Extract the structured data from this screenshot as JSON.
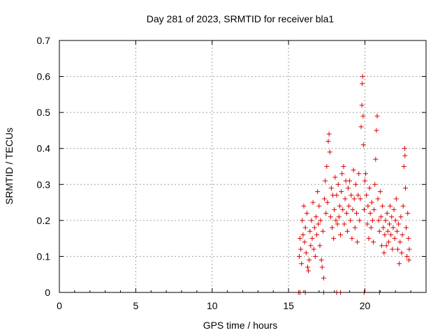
{
  "chart_data": {
    "type": "scatter",
    "title": "Day 281 of 2023, SRMTID for receiver bla1",
    "xlabel": "GPS time / hours",
    "ylabel": "SRMTID / TECUs",
    "xlim": [
      0,
      24
    ],
    "ylim": [
      0,
      0.7
    ],
    "x_ticks": [
      0,
      5,
      10,
      15,
      20
    ],
    "y_ticks": [
      0,
      0.1,
      0.2,
      0.3,
      0.4,
      0.5,
      0.6,
      0.7
    ],
    "x_tick_labels": [
      "0",
      "5",
      "10",
      "15",
      "20"
    ],
    "y_tick_labels": [
      "0",
      "0.1",
      "0.2",
      "0.3",
      "0.4",
      "0.5",
      "0.6",
      "0.7"
    ],
    "grid": true,
    "marker": "+",
    "color": "#dd0000",
    "series": [
      {
        "name": "SRMTID",
        "points": [
          [
            15.65,
            0
          ],
          [
            15.75,
            0
          ],
          [
            16.1,
            0
          ],
          [
            17.3,
            0
          ],
          [
            18.15,
            0
          ],
          [
            18.4,
            0
          ],
          [
            19.95,
            0
          ],
          [
            20.95,
            0
          ],
          [
            15.7,
            0.1
          ],
          [
            15.75,
            0.15
          ],
          [
            15.8,
            0.12
          ],
          [
            15.85,
            0.08
          ],
          [
            15.9,
            0.2
          ],
          [
            15.95,
            0.16
          ],
          [
            16.0,
            0.24
          ],
          [
            16.05,
            0.14
          ],
          [
            16.1,
            0.18
          ],
          [
            16.15,
            0.11
          ],
          [
            16.2,
            0.22
          ],
          [
            16.25,
            0.07
          ],
          [
            16.3,
            0.06
          ],
          [
            16.35,
            0.09
          ],
          [
            16.4,
            0.17
          ],
          [
            16.45,
            0.13
          ],
          [
            16.5,
            0.2
          ],
          [
            16.55,
            0.15
          ],
          [
            16.6,
            0.25
          ],
          [
            16.65,
            0.12
          ],
          [
            16.7,
            0.18
          ],
          [
            16.75,
            0.1
          ],
          [
            16.8,
            0.21
          ],
          [
            16.85,
            0.16
          ],
          [
            16.9,
            0.28
          ],
          [
            16.95,
            0.19
          ],
          [
            17.0,
            0.24
          ],
          [
            17.05,
            0.13
          ],
          [
            17.1,
            0.2
          ],
          [
            17.15,
            0.09
          ],
          [
            17.2,
            0.07
          ],
          [
            17.25,
            0.17
          ],
          [
            17.3,
            0.04
          ],
          [
            17.35,
            0.26
          ],
          [
            17.4,
            0.31
          ],
          [
            17.45,
            0.22
          ],
          [
            17.5,
            0.35
          ],
          [
            17.55,
            0.25
          ],
          [
            17.6,
            0.42
          ],
          [
            17.65,
            0.44
          ],
          [
            17.7,
            0.39
          ],
          [
            17.75,
            0.21
          ],
          [
            17.8,
            0.29
          ],
          [
            17.85,
            0.18
          ],
          [
            17.9,
            0.27
          ],
          [
            17.95,
            0.15
          ],
          [
            18.0,
            0.23
          ],
          [
            18.05,
            0.32
          ],
          [
            18.1,
            0.2
          ],
          [
            18.15,
            0.27
          ],
          [
            18.2,
            0.19
          ],
          [
            18.25,
            0.3
          ],
          [
            18.3,
            0.21
          ],
          [
            18.35,
            0.24
          ],
          [
            18.4,
            0.16
          ],
          [
            18.45,
            0.28
          ],
          [
            18.5,
            0.33
          ],
          [
            18.55,
            0.23
          ],
          [
            18.6,
            0.35
          ],
          [
            18.65,
            0.19
          ],
          [
            18.7,
            0.26
          ],
          [
            18.75,
            0.31
          ],
          [
            18.8,
            0.22
          ],
          [
            18.85,
            0.17
          ],
          [
            18.9,
            0.29
          ],
          [
            18.95,
            0.24
          ],
          [
            19.0,
            0.31
          ],
          [
            19.05,
            0.2
          ],
          [
            19.1,
            0.27
          ],
          [
            19.15,
            0.15
          ],
          [
            19.2,
            0.23
          ],
          [
            19.25,
            0.34
          ],
          [
            19.3,
            0.26
          ],
          [
            19.35,
            0.18
          ],
          [
            19.4,
            0.3
          ],
          [
            19.45,
            0.22
          ],
          [
            19.5,
            0.14
          ],
          [
            19.55,
            0.27
          ],
          [
            19.6,
            0.33
          ],
          [
            19.65,
            0.2
          ],
          [
            19.7,
            0.26
          ],
          [
            19.75,
            0.46
          ],
          [
            19.8,
            0.52
          ],
          [
            19.82,
            0.58
          ],
          [
            19.85,
            0.6
          ],
          [
            19.88,
            0.49
          ],
          [
            19.9,
            0.41
          ],
          [
            19.95,
            0.23
          ],
          [
            20.0,
            0.31
          ],
          [
            20.05,
            0.33
          ],
          [
            20.1,
            0.27
          ],
          [
            20.15,
            0.19
          ],
          [
            20.2,
            0.24
          ],
          [
            20.25,
            0.15
          ],
          [
            20.3,
            0.29
          ],
          [
            20.35,
            0.22
          ],
          [
            20.4,
            0.18
          ],
          [
            20.45,
            0.25
          ],
          [
            20.5,
            0.2
          ],
          [
            20.55,
            0.14
          ],
          [
            20.6,
            0.23
          ],
          [
            20.65,
            0.3
          ],
          [
            20.7,
            0.37
          ],
          [
            20.75,
            0.45
          ],
          [
            20.8,
            0.49
          ],
          [
            20.85,
            0.26
          ],
          [
            20.9,
            0.2
          ],
          [
            20.95,
            0.17
          ],
          [
            21.0,
            0.28
          ],
          [
            21.05,
            0.21
          ],
          [
            21.1,
            0.13
          ],
          [
            21.15,
            0.24
          ],
          [
            21.2,
            0.18
          ],
          [
            21.25,
            0.11
          ],
          [
            21.3,
            0.16
          ],
          [
            21.35,
            0.2
          ],
          [
            21.4,
            0.13
          ],
          [
            21.45,
            0.22
          ],
          [
            21.5,
            0.17
          ],
          [
            21.55,
            0.14
          ],
          [
            21.6,
            0.19
          ],
          [
            21.65,
            0.24
          ],
          [
            21.7,
            0.16
          ],
          [
            21.75,
            0.21
          ],
          [
            21.8,
            0.12
          ],
          [
            21.85,
            0.18
          ],
          [
            21.9,
            0.23
          ],
          [
            21.95,
            0.15
          ],
          [
            22.0,
            0.2
          ],
          [
            22.05,
            0.26
          ],
          [
            22.1,
            0.17
          ],
          [
            22.15,
            0.12
          ],
          [
            22.2,
            0.19
          ],
          [
            22.25,
            0.08
          ],
          [
            22.3,
            0.14
          ],
          [
            22.35,
            0.21
          ],
          [
            22.4,
            0.11
          ],
          [
            22.45,
            0.16
          ],
          [
            22.5,
            0.24
          ],
          [
            22.55,
            0.35
          ],
          [
            22.6,
            0.4
          ],
          [
            22.62,
            0.38
          ],
          [
            22.65,
            0.29
          ],
          [
            22.7,
            0.18
          ],
          [
            22.75,
            0.1
          ],
          [
            22.8,
            0.22
          ],
          [
            22.85,
            0.15
          ],
          [
            22.88,
            0.09
          ],
          [
            22.9,
            0.12
          ]
        ]
      }
    ]
  }
}
